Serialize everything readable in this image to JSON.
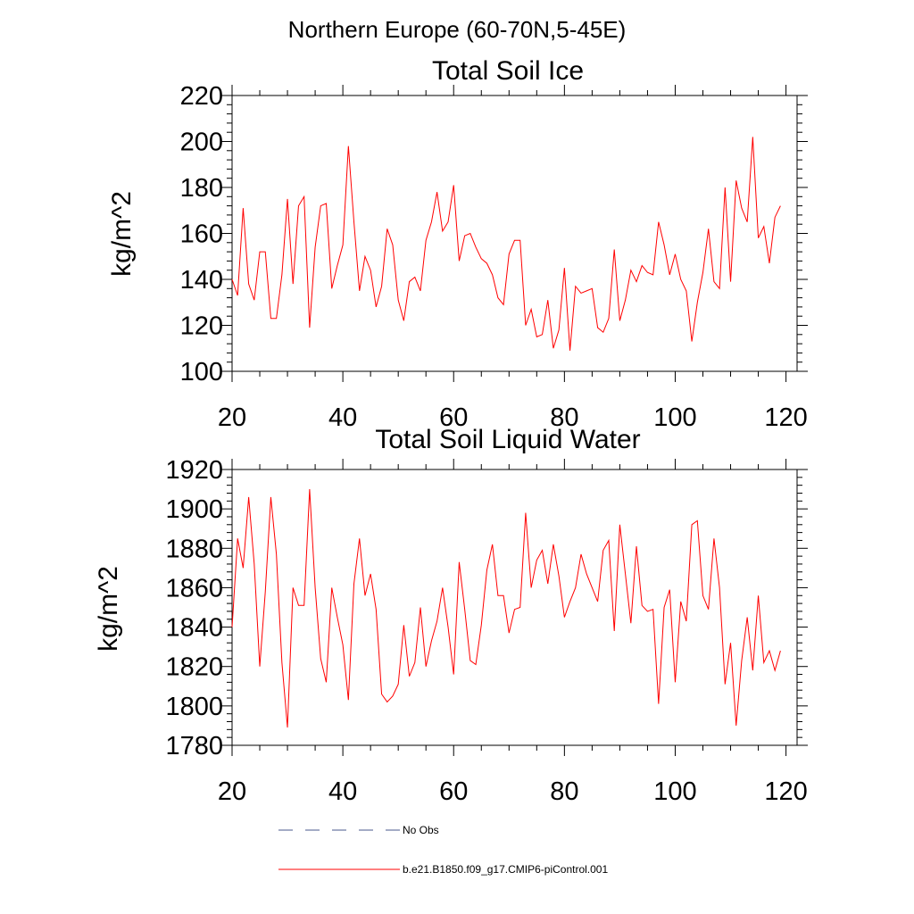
{
  "figure_title": "Northern Europe (60-70N,5-45E)",
  "legend": [
    {
      "label": "No Obs",
      "color": "#4a5a8c",
      "style": "dashed"
    },
    {
      "label": "b.e21.B1850.f09_g17.CMIP6-piControl.001",
      "color": "#ff0000",
      "style": "solid"
    }
  ],
  "chart_data": [
    {
      "type": "line",
      "title": "Total Soil Ice",
      "xlabel": "",
      "ylabel": "kg/m^2",
      "xlim": [
        20,
        122
      ],
      "ylim": [
        100,
        220
      ],
      "xticks": [
        20,
        40,
        60,
        80,
        100,
        120
      ],
      "yticks": [
        100,
        120,
        140,
        160,
        180,
        200,
        220
      ],
      "x_start": 20,
      "series": [
        {
          "name": "b.e21.B1850.f09_g17.CMIP6-piControl.001",
          "color": "#ff0000",
          "values": [
            140,
            133,
            171,
            138,
            131,
            152,
            152,
            123,
            123,
            142,
            175,
            138,
            172,
            176,
            119,
            154,
            172,
            173,
            136,
            146,
            155,
            198,
            165,
            135,
            150,
            144,
            128,
            137,
            162,
            155,
            131,
            122,
            139,
            141,
            135,
            157,
            165,
            178,
            161,
            165,
            181,
            148,
            159,
            160,
            154,
            149,
            147,
            142,
            132,
            129,
            151,
            157,
            157,
            120,
            127,
            115,
            116,
            131,
            110,
            118,
            145,
            109,
            137,
            134,
            135,
            136,
            119,
            117,
            123,
            153,
            122,
            131,
            144,
            139,
            146,
            143,
            142,
            165,
            155,
            142,
            151,
            140,
            135,
            113,
            130,
            143,
            162,
            139,
            136,
            180,
            139,
            183,
            171,
            165,
            202,
            158,
            163,
            147,
            167,
            172
          ]
        }
      ]
    },
    {
      "type": "line",
      "title": "Total Soil Liquid Water",
      "xlabel": "",
      "ylabel": "kg/m^2",
      "xlim": [
        20,
        122
      ],
      "ylim": [
        1780,
        1920
      ],
      "xticks": [
        20,
        40,
        60,
        80,
        100,
        120
      ],
      "yticks": [
        1780,
        1800,
        1820,
        1840,
        1860,
        1880,
        1900,
        1920
      ],
      "x_start": 20,
      "series": [
        {
          "name": "b.e21.B1850.f09_g17.CMIP6-piControl.001",
          "color": "#ff0000",
          "values": [
            1840,
            1885,
            1870,
            1906,
            1872,
            1820,
            1858,
            1906,
            1877,
            1822,
            1789,
            1860,
            1851,
            1851,
            1910,
            1860,
            1824,
            1812,
            1860,
            1845,
            1831,
            1803,
            1862,
            1885,
            1856,
            1867,
            1849,
            1806,
            1802,
            1805,
            1811,
            1841,
            1815,
            1822,
            1850,
            1820,
            1833,
            1843,
            1860,
            1840,
            1816,
            1873,
            1849,
            1823,
            1821,
            1841,
            1869,
            1882,
            1856,
            1856,
            1837,
            1849,
            1850,
            1898,
            1860,
            1874,
            1879,
            1862,
            1882,
            1866,
            1845,
            1853,
            1860,
            1877,
            1867,
            1860,
            1853,
            1879,
            1884,
            1838,
            1892,
            1867,
            1842,
            1881,
            1851,
            1848,
            1849,
            1801,
            1850,
            1859,
            1812,
            1853,
            1843,
            1892,
            1894,
            1856,
            1849,
            1885,
            1860,
            1811,
            1832,
            1790,
            1823,
            1845,
            1818,
            1856,
            1822,
            1828,
            1818,
            1828
          ]
        }
      ]
    }
  ]
}
